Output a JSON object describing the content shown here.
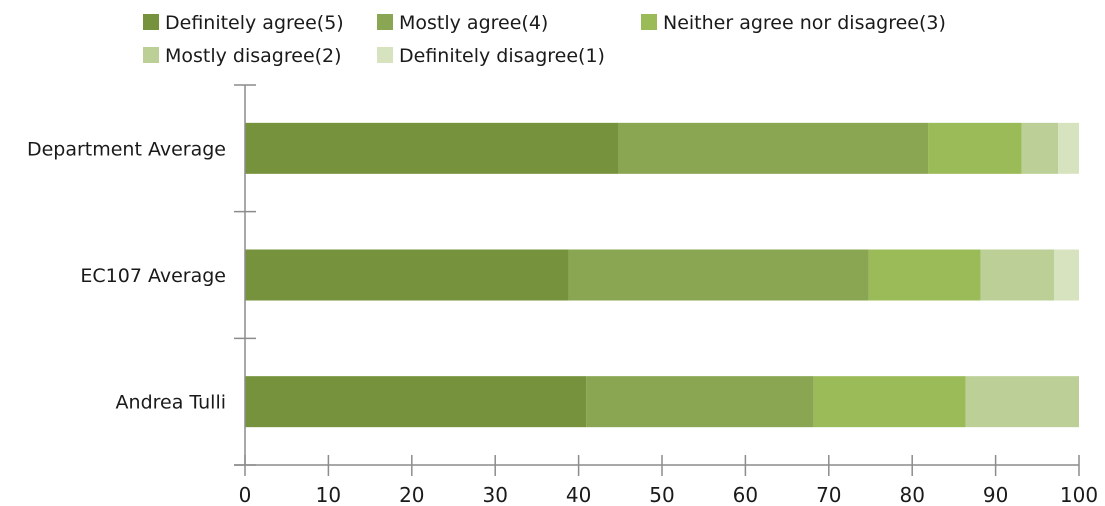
{
  "chart_data": {
    "type": "bar",
    "orientation": "horizontal",
    "stacked": true,
    "title": "",
    "xlabel": "",
    "ylabel": "",
    "xlim": [
      0,
      100
    ],
    "xticks": [
      0,
      10,
      20,
      30,
      40,
      50,
      60,
      70,
      80,
      90,
      100
    ],
    "grid": false,
    "legend_position": "top",
    "categories": [
      "Department Average",
      "EC107 Average",
      "Andrea Tulli"
    ],
    "series": [
      {
        "name": "Definitely agree(5)",
        "color": "#76923c",
        "values": [
          44.8,
          38.8,
          40.9
        ]
      },
      {
        "name": "Mostly agree(4)",
        "color": "#8aa652",
        "values": [
          37.1,
          36.0,
          27.3
        ]
      },
      {
        "name": "Neither agree nor disagree(3)",
        "color": "#9bbb59",
        "values": [
          11.2,
          13.4,
          18.2
        ]
      },
      {
        "name": "Mostly disagree(2)",
        "color": "#bbcf97",
        "values": [
          4.4,
          8.8,
          13.6
        ]
      },
      {
        "name": "Definitely disagree(1)",
        "color": "#d7e3bf",
        "values": [
          2.5,
          3.0,
          0
        ]
      }
    ]
  }
}
